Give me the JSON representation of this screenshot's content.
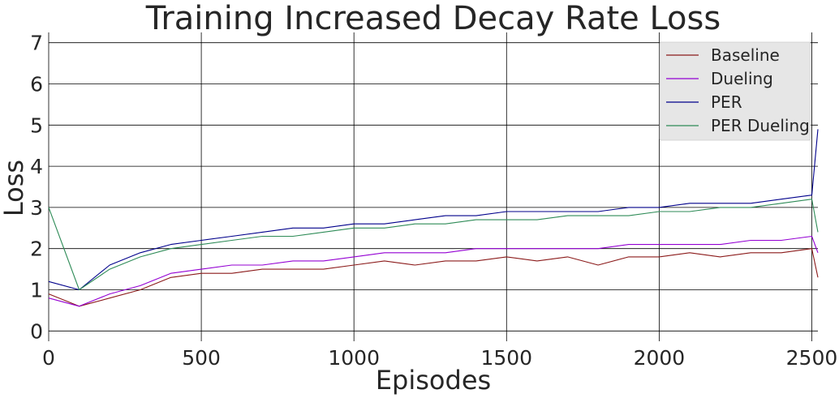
{
  "chart_data": {
    "type": "line",
    "title": "Training Increased Decay Rate Loss",
    "xlabel": "Episodes",
    "ylabel": "Loss",
    "xlim": [
      0,
      2520
    ],
    "ylim": [
      -0.25,
      7.25
    ],
    "xticks": [
      0,
      500,
      1000,
      1500,
      2000,
      2500
    ],
    "yticks": [
      0,
      1,
      2,
      3,
      4,
      5,
      6,
      7
    ],
    "grid": true,
    "legend_position": "top-right",
    "series": [
      {
        "name": "Baseline",
        "color": "#8b1a1a",
        "x": [
          0,
          100,
          200,
          300,
          400,
          500,
          600,
          700,
          800,
          900,
          1000,
          1100,
          1200,
          1300,
          1400,
          1500,
          1600,
          1700,
          1800,
          1900,
          2000,
          2100,
          2200,
          2300,
          2400,
          2500,
          2520
        ],
        "values": [
          0.9,
          0.6,
          0.8,
          1.0,
          1.3,
          1.4,
          1.4,
          1.5,
          1.5,
          1.5,
          1.6,
          1.7,
          1.6,
          1.7,
          1.7,
          1.8,
          1.7,
          1.8,
          1.6,
          1.8,
          1.8,
          1.9,
          1.8,
          1.9,
          1.9,
          2.0,
          1.3
        ]
      },
      {
        "name": "Dueling",
        "color": "#9400d3",
        "x": [
          0,
          100,
          200,
          300,
          400,
          500,
          600,
          700,
          800,
          900,
          1000,
          1100,
          1200,
          1300,
          1400,
          1500,
          1600,
          1700,
          1800,
          1900,
          2000,
          2100,
          2200,
          2300,
          2400,
          2500,
          2520
        ],
        "values": [
          0.8,
          0.6,
          0.9,
          1.1,
          1.4,
          1.5,
          1.6,
          1.6,
          1.7,
          1.7,
          1.8,
          1.9,
          1.9,
          1.9,
          2.0,
          2.0,
          2.0,
          2.0,
          2.0,
          2.1,
          2.1,
          2.1,
          2.1,
          2.2,
          2.2,
          2.3,
          1.9
        ]
      },
      {
        "name": "PER",
        "color": "#00008b",
        "x": [
          0,
          100,
          200,
          300,
          400,
          500,
          600,
          700,
          800,
          900,
          1000,
          1100,
          1200,
          1300,
          1400,
          1500,
          1600,
          1700,
          1800,
          1900,
          2000,
          2100,
          2200,
          2300,
          2400,
          2500,
          2520
        ],
        "values": [
          1.2,
          1.0,
          1.6,
          1.9,
          2.1,
          2.2,
          2.3,
          2.4,
          2.5,
          2.5,
          2.6,
          2.6,
          2.7,
          2.8,
          2.8,
          2.9,
          2.9,
          2.9,
          2.9,
          3.0,
          3.0,
          3.1,
          3.1,
          3.1,
          3.2,
          3.3,
          4.9
        ]
      },
      {
        "name": "PER Dueling",
        "color": "#2e8b57",
        "x": [
          0,
          100,
          200,
          300,
          400,
          500,
          600,
          700,
          800,
          900,
          1000,
          1100,
          1200,
          1300,
          1400,
          1500,
          1600,
          1700,
          1800,
          1900,
          2000,
          2100,
          2200,
          2300,
          2400,
          2500,
          2520
        ],
        "values": [
          3.0,
          1.0,
          1.5,
          1.8,
          2.0,
          2.1,
          2.2,
          2.3,
          2.3,
          2.4,
          2.5,
          2.5,
          2.6,
          2.6,
          2.7,
          2.7,
          2.7,
          2.8,
          2.8,
          2.8,
          2.9,
          2.9,
          3.0,
          3.0,
          3.1,
          3.2,
          2.4
        ]
      }
    ]
  }
}
